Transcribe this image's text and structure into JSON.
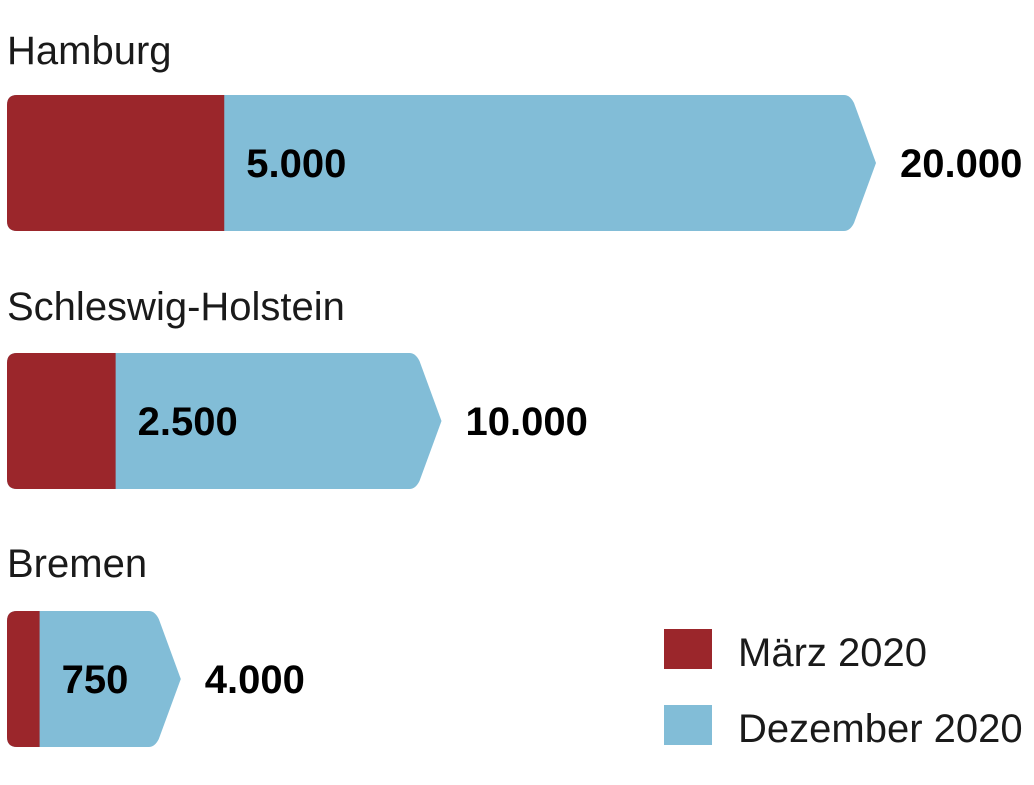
{
  "chart_data": {
    "type": "bar",
    "orientation": "horizontal",
    "stacking": "overlay",
    "categories": [
      "Hamburg",
      "Schleswig-Holstein",
      "Bremen"
    ],
    "series": [
      {
        "name": "März 2020",
        "values": [
          5000,
          2500,
          750
        ],
        "labels": [
          "5.000",
          "2.500",
          "750"
        ],
        "color": "#9b262b"
      },
      {
        "name": "Dezember 2020",
        "values": [
          20000,
          10000,
          4000
        ],
        "labels": [
          "20.000",
          "10.000",
          "4.000"
        ],
        "color": "#82bdd7"
      }
    ],
    "xlim": [
      0,
      20000
    ],
    "grid": false,
    "legend_position": "bottom-right",
    "title": "",
    "xlabel": "",
    "ylabel": ""
  }
}
